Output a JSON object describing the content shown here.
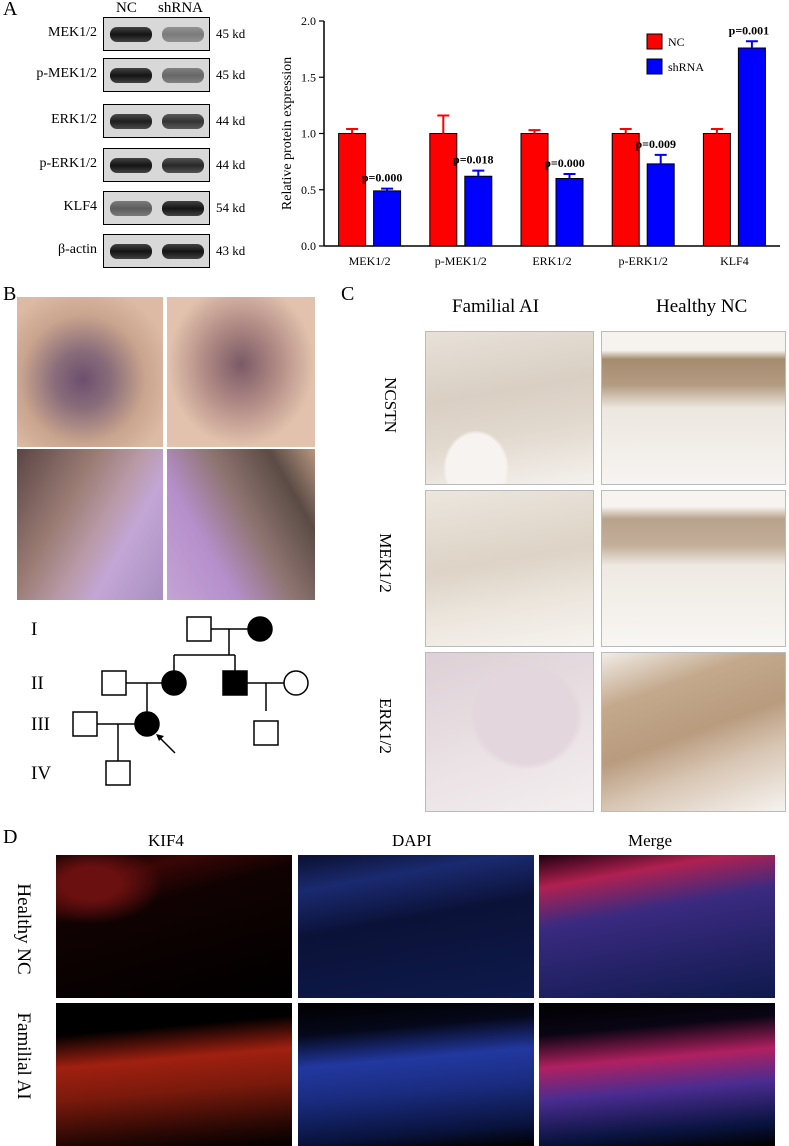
{
  "panels": {
    "a": "A",
    "b": "B",
    "c": "C",
    "d": "D"
  },
  "blot": {
    "col_nc": "NC",
    "col_sh": "shRNA",
    "rows": [
      {
        "label": "MEK1/2",
        "size": "45 kd",
        "nc": 0.95,
        "sh": 0.45
      },
      {
        "label": "p-MEK1/2",
        "size": "45 kd",
        "nc": 0.95,
        "sh": 0.55
      },
      {
        "label": "ERK1/2",
        "size": "44 kd",
        "nc": 0.9,
        "sh": 0.8
      },
      {
        "label": "p-ERK1/2",
        "size": "44 kd",
        "nc": 0.95,
        "sh": 0.85
      },
      {
        "label": "KLF4",
        "size": "54 kd",
        "nc": 0.6,
        "sh": 0.95
      },
      {
        "label": "β-actin",
        "size": "43 kd",
        "nc": 0.95,
        "sh": 0.95
      }
    ]
  },
  "chart_data": {
    "type": "bar",
    "ylabel": "Relative protein expression",
    "ylim": [
      0,
      2.0
    ],
    "yticks": [
      "0.0",
      "0.5",
      "1.0",
      "1.5",
      "2.0"
    ],
    "categories": [
      "MEK1/2",
      "p-MEK1/2",
      "ERK1/2",
      "p-ERK1/2",
      "KLF4"
    ],
    "series": [
      {
        "name": "NC",
        "color": "#ff0000",
        "values": [
          1.0,
          1.0,
          1.0,
          1.0,
          1.0
        ],
        "errors": [
          0.04,
          0.16,
          0.03,
          0.04,
          0.04
        ]
      },
      {
        "name": "shRNA",
        "color": "#0000ff",
        "values": [
          0.49,
          0.62,
          0.6,
          0.73,
          1.76
        ],
        "errors": [
          0.02,
          0.05,
          0.04,
          0.08,
          0.06
        ]
      }
    ],
    "annotations": [
      "p=0.000",
      "p=0.018",
      "p=0.000",
      "p=0.009",
      "p=0.001"
    ],
    "legend": "top-right"
  },
  "pedigree": {
    "generations": [
      "I",
      "II",
      "III",
      "IV"
    ]
  },
  "ihc": {
    "col1": "Familial AI",
    "col2": "Healthy NC",
    "rows": [
      "NCSTN",
      "MEK1/2",
      "ERK1/2"
    ]
  },
  "if": {
    "cols": [
      "KIF4",
      "DAPI",
      "Merge"
    ],
    "rows": [
      "Healthy NC",
      "Familial AI"
    ]
  }
}
